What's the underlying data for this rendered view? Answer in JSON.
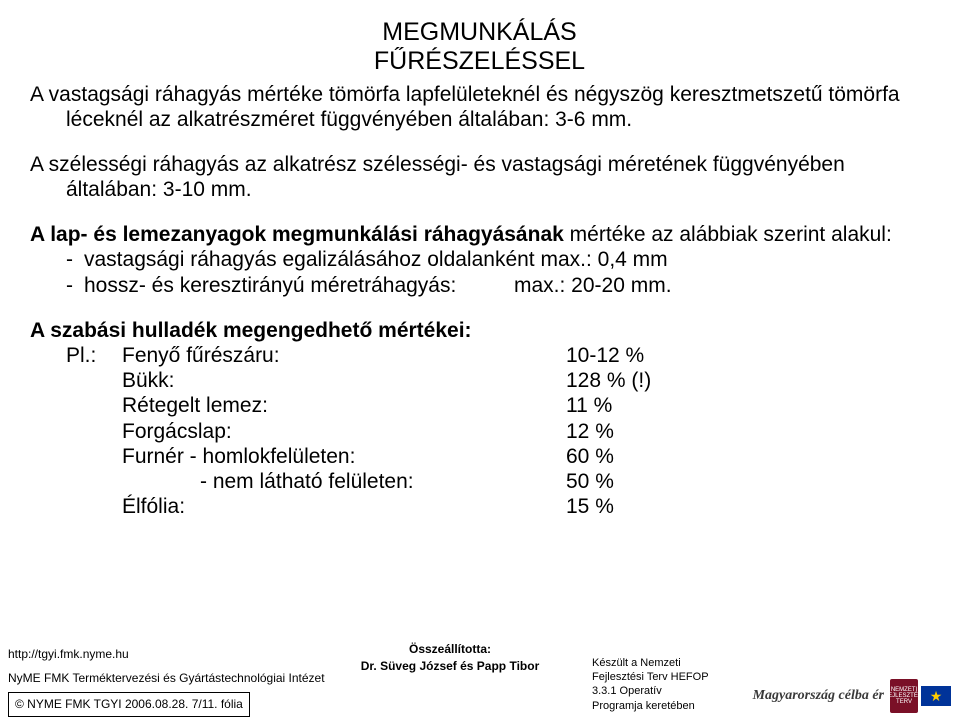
{
  "title_line1": "MEGMUNKÁLÁS",
  "title_line2": "FŰRÉSZELÉSSEL",
  "para1": "A vastagsági ráhagyás mértéke tömörfa lapfelületeknél és négyszög keresztmetszetű tömörfa léceknél az alkatrészméret függvényében általában: 3-6 mm.",
  "para2": "A szélességi ráhagyás az alkatrész szélességi- és vastagsági méretének függvényében általában: 3-10 mm.",
  "para3_lead_bold": "A lap- és lemezanyagok megmunkálási ráhagyásának",
  "para3_lead_rest": " mértéke az alábbiak szerint alakul:",
  "para3_item1": "vastagsági ráhagyás egalizálásához oldalanként max.: 0,4 mm",
  "para3_item2_label": "hossz- és keresztirányú méretráhagyás:",
  "para3_item2_val": "max.: 20-20 mm.",
  "para4_head": "A szabási hulladék megengedhető mértékei:",
  "para4_pl": "Pl.:",
  "allowances": [
    {
      "label": "Fenyő fűrészáru:",
      "val": "10-12 %",
      "sub": false
    },
    {
      "label": "Bükk:",
      "val": "128 % (!)",
      "sub": false
    },
    {
      "label": "Rétegelt lemez:",
      "val": "11 %",
      "sub": false
    },
    {
      "label": "Forgácslap:",
      "val": "12 %",
      "sub": false
    },
    {
      "label": "Furnér - homlokfelületen:",
      "val": "60 %",
      "sub": false
    },
    {
      "label": "- nem látható felületen:",
      "val": "50 %",
      "sub": true
    },
    {
      "label": "Élfólia:",
      "val": "15 %",
      "sub": false
    }
  ],
  "footer": {
    "url": "http://tgyi.fmk.nyme.hu",
    "inst": "NyME FMK Terméktervezési és Gyártástechnológiai Intézet",
    "copyright": "© NYME FMK TGYI 2006.08.28.    7/11. fólia",
    "compiled_label": "Összeállította:",
    "compiled_by": "Dr. Süveg József és Papp Tibor",
    "fund1": "Készült a Nemzeti",
    "fund2": "Fejlesztési Terv HEFOP",
    "fund3": "3.3.1 Operatív",
    "fund4": "Programja keretében",
    "slogan": "Magyarország célba ér",
    "logo1": "NEMZETI FEJLESZTÉSI TERV",
    "eu_stars": "★"
  }
}
